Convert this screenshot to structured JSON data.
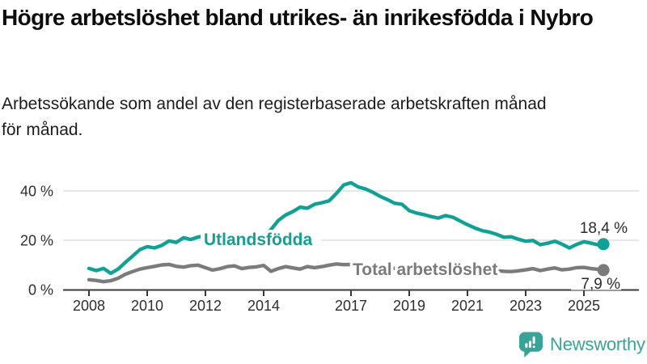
{
  "title": "Högre arbetslöshet bland utrikes- än inrikesfödda i Nybro",
  "subtitle": "Arbetssökande som andel av den registerbaserade arbetskraften månad för månad.",
  "chart_data": {
    "type": "line",
    "unit": "%",
    "grid": "horizontal",
    "legend_position": "inline-labels",
    "xlim": [
      2007.8,
      2026
    ],
    "ylim": [
      0,
      46
    ],
    "x_ticks": [
      2008,
      2010,
      2012,
      2014,
      2017,
      2019,
      2021,
      2023,
      2025
    ],
    "y_ticks": [
      {
        "value": 0,
        "label": "0 %"
      },
      {
        "value": 20,
        "label": "20 %"
      },
      {
        "value": 40,
        "label": "40 %"
      }
    ],
    "x": [
      2008,
      2008.25,
      2008.5,
      2008.75,
      2009,
      2009.25,
      2009.5,
      2009.75,
      2010,
      2010.25,
      2010.5,
      2010.75,
      2011,
      2011.25,
      2011.5,
      2011.75,
      2012,
      2012.25,
      2012.5,
      2012.75,
      2013,
      2013.25,
      2013.5,
      2013.75,
      2014,
      2014.25,
      2014.5,
      2014.75,
      2015,
      2015.25,
      2015.5,
      2015.75,
      2016,
      2016.25,
      2016.5,
      2016.75,
      2017,
      2017.25,
      2017.5,
      2017.75,
      2018,
      2018.25,
      2018.5,
      2018.75,
      2019,
      2019.25,
      2019.5,
      2019.75,
      2020,
      2020.25,
      2020.5,
      2020.75,
      2021,
      2021.25,
      2021.5,
      2021.75,
      2022,
      2022.25,
      2022.5,
      2022.75,
      2023,
      2023.25,
      2023.5,
      2023.75,
      2024,
      2024.25,
      2024.5,
      2024.75,
      2025,
      2025.25,
      2025.5,
      2025.67
    ],
    "series": [
      {
        "name": "Utlandsfödda",
        "color": "#0fa294",
        "end_label": "18,4 %",
        "end_value": 18.4,
        "values": [
          8.6,
          7.7,
          8.6,
          6.6,
          8.3,
          11,
          13.6,
          16.2,
          17.4,
          16.9,
          17.9,
          19.7,
          19.1,
          21,
          20.3,
          21.3,
          21.8,
          20.9,
          20.1,
          20.7,
          21.3,
          20.5,
          19.9,
          20.8,
          21.8,
          24.3,
          28,
          30.2,
          31.6,
          33.4,
          33,
          34.6,
          35.2,
          36,
          39,
          42.4,
          43.3,
          41.6,
          40.8,
          39.4,
          37.8,
          36.5,
          35,
          34.6,
          32,
          31,
          30.4,
          29.6,
          29,
          30,
          29.3,
          27.8,
          26.3,
          25,
          23.9,
          23.3,
          22.4,
          21.2,
          21.4,
          20.4,
          19.6,
          19.9,
          18.2,
          18.8,
          19.6,
          18.4,
          16.9,
          18.3,
          19.4,
          18.8,
          18.1,
          18.4
        ]
      },
      {
        "name": "Total arbetslöshet",
        "color": "#7b7b7b",
        "end_label": "7,9 %",
        "end_value": 7.9,
        "values": [
          4,
          3.7,
          3.2,
          3.6,
          4.6,
          6.2,
          7.3,
          8.3,
          8.9,
          9.4,
          10,
          10.2,
          9.4,
          9.1,
          9.7,
          9.9,
          8.9,
          7.9,
          8.5,
          9.3,
          9.6,
          8.5,
          9,
          9.2,
          9.8,
          7.4,
          8.5,
          9.3,
          8.8,
          8.3,
          9.3,
          8.9,
          9.3,
          9.9,
          10.4,
          10.1,
          10.2,
          9.8,
          9.4,
          9.1,
          9.3,
          8.9,
          8.6,
          8.8,
          8.6,
          8.3,
          8.5,
          8.2,
          8.7,
          9.3,
          9,
          8.8,
          8.6,
          8.3,
          8.1,
          7.9,
          7.7,
          7.4,
          7.3,
          7.6,
          8,
          8.5,
          7.7,
          8.3,
          8.8,
          8,
          8.3,
          8.9,
          9,
          8.5,
          8.2,
          7.9
        ]
      }
    ]
  },
  "colors": {
    "accent_teal": "#0fa294",
    "line_gray": "#7b7b7b",
    "axis": "#3a3a3a",
    "grid": "#dedede"
  },
  "logo": {
    "text": "Newsworthy",
    "color": "#38a396",
    "icon": "newsworthy-bubble-chart-icon"
  }
}
